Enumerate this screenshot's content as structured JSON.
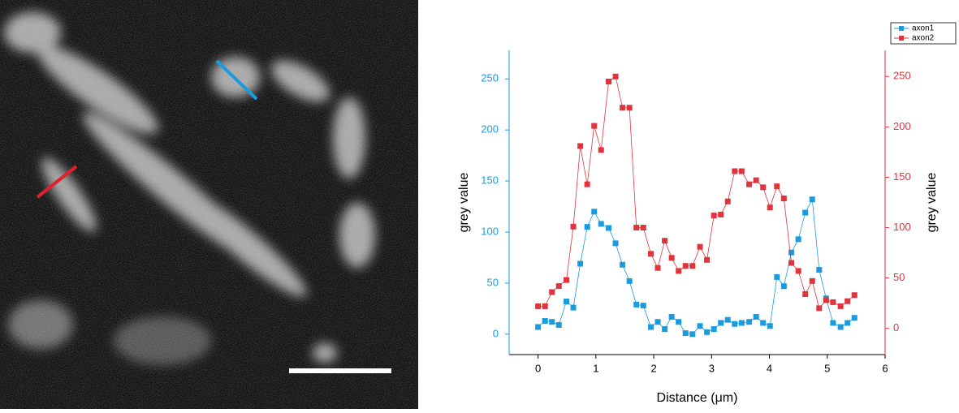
{
  "chart_data": {
    "type": "line",
    "x_label": "Distance (μm)",
    "y_label": "grey value",
    "y2_label": "grey value",
    "x": [
      0,
      0.12,
      0.24,
      0.36,
      0.49,
      0.61,
      0.73,
      0.85,
      0.97,
      1.09,
      1.22,
      1.34,
      1.46,
      1.58,
      1.7,
      1.82,
      1.95,
      2.07,
      2.19,
      2.31,
      2.43,
      2.55,
      2.67,
      2.8,
      2.92,
      3.04,
      3.16,
      3.28,
      3.4,
      3.52,
      3.65,
      3.77,
      3.89,
      4.01,
      4.13,
      4.25,
      4.38,
      4.5,
      4.62,
      4.74,
      4.86,
      4.98,
      5.1,
      5.23,
      5.35,
      5.47
    ],
    "series": [
      {
        "name": "axon1",
        "color": "#1a9be0",
        "values": [
          7,
          13,
          12,
          9,
          32,
          26,
          69,
          105,
          120,
          108,
          104,
          89,
          68,
          52,
          29,
          28,
          7,
          12,
          5,
          17,
          12,
          1,
          0,
          8,
          2,
          5,
          11,
          14,
          10,
          11,
          12,
          17,
          11,
          8,
          56,
          47,
          80,
          93,
          119,
          132,
          63,
          35,
          11,
          7,
          11,
          16
        ]
      },
      {
        "name": "axon2",
        "color": "#e0343c",
        "axis": "y2",
        "values": [
          22,
          22,
          36,
          42,
          48,
          101,
          181,
          143,
          201,
          177,
          245,
          250,
          219,
          219,
          100,
          100,
          74,
          60,
          87,
          70,
          57,
          62,
          62,
          81,
          68,
          112,
          113,
          126,
          156,
          156,
          143,
          147,
          140,
          120,
          141,
          129,
          65,
          57,
          34,
          47,
          20,
          28,
          26,
          22,
          27,
          33
        ]
      }
    ],
    "xlim": [
      -0.5,
      6
    ],
    "xticks": [
      0,
      1,
      2,
      3,
      4,
      5,
      6
    ],
    "ylim": [
      -20,
      278
    ],
    "yticks": [
      0,
      50,
      100,
      150,
      200,
      250
    ],
    "y2lim": [
      -26,
      276
    ],
    "y2ticks": [
      0,
      50,
      100,
      150,
      200,
      250
    ],
    "legend": "top-right"
  }
}
